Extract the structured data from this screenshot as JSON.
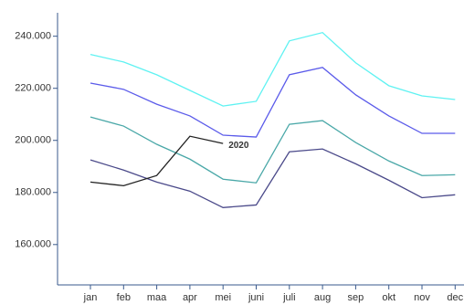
{
  "chart_data": {
    "type": "line",
    "categories": [
      "jan",
      "feb",
      "maa",
      "apr",
      "mei",
      "juni",
      "juli",
      "aug",
      "sep",
      "okt",
      "nov",
      "dec"
    ],
    "series": [
      {
        "color": "#5ff2f2",
        "values": [
          233000,
          230100,
          225200,
          219200,
          213200,
          215000,
          238200,
          241400,
          229800,
          221000,
          217100,
          215700
        ]
      },
      {
        "color": "#5b5bea",
        "values": [
          222000,
          219600,
          213900,
          209400,
          202000,
          201300,
          225200,
          228000,
          217500,
          209400,
          202700,
          202700
        ]
      },
      {
        "color": "#4aa8a8",
        "values": [
          209000,
          205500,
          198500,
          192800,
          185100,
          183700,
          206200,
          207600,
          199200,
          192100,
          186500,
          186800
        ]
      },
      {
        "color": "#4b4a8a",
        "values": [
          192500,
          188600,
          184000,
          180500,
          174200,
          175200,
          195600,
          196700,
          191000,
          184700,
          178000,
          179100
        ]
      },
      {
        "name": "2020",
        "color": "#222222",
        "values": [
          184000,
          182600,
          186500,
          201600,
          198800,
          null,
          null,
          null,
          null,
          null,
          null,
          null
        ]
      }
    ],
    "ylim": [
      144500,
      249000
    ],
    "yticks": [
      {
        "value": 160000,
        "label": "160.000"
      },
      {
        "value": 180000,
        "label": "180.000"
      },
      {
        "value": 200000,
        "label": "200.000"
      },
      {
        "value": 220000,
        "label": "220.000"
      },
      {
        "value": 240000,
        "label": "240.000"
      }
    ]
  }
}
